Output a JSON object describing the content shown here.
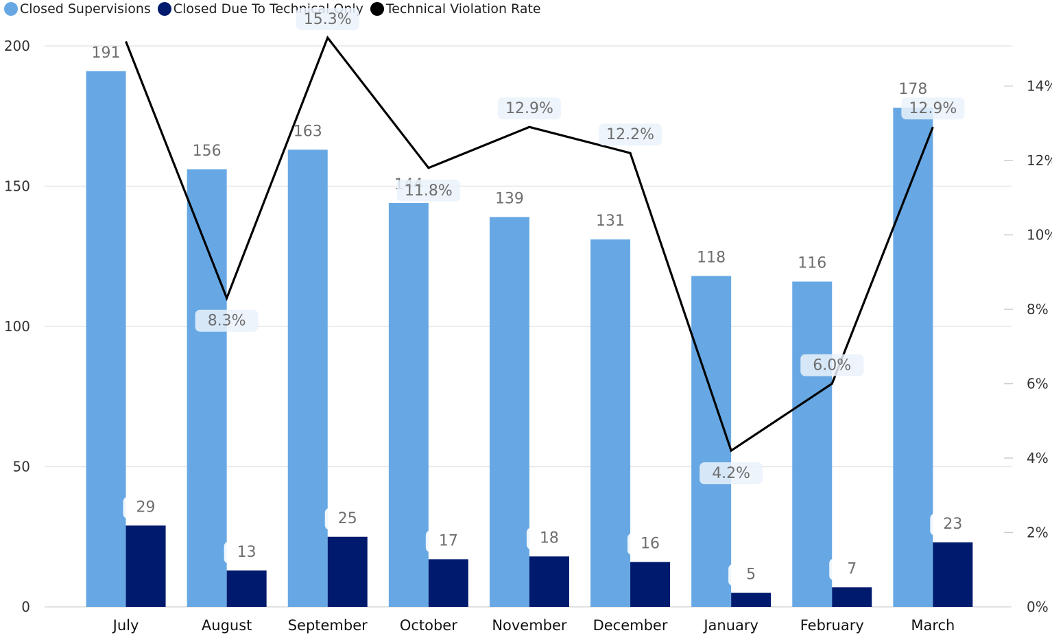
{
  "colors": {
    "closed_supervisions": "#67A8E4",
    "closed_technical": "#001A6E",
    "violation_rate": "#000000",
    "label_text": "#6E6E6E"
  },
  "legend": [
    {
      "label": "Closed Supervisions",
      "color": "#67A8E4"
    },
    {
      "label": "Closed Due To Technical Only",
      "color": "#001A6E"
    },
    {
      "label": "Technical Violation Rate",
      "color": "#000000"
    }
  ],
  "chart_data": {
    "type": "bar",
    "categories": [
      "July",
      "August",
      "September",
      "October",
      "November",
      "December",
      "January",
      "February",
      "March"
    ],
    "series": [
      {
        "name": "Closed Supervisions",
        "kind": "bar",
        "axis": "left",
        "values": [
          191,
          156,
          163,
          144,
          139,
          131,
          118,
          116,
          178
        ]
      },
      {
        "name": "Closed Due To Technical Only",
        "kind": "bar",
        "axis": "left",
        "values": [
          29,
          13,
          25,
          17,
          18,
          16,
          5,
          7,
          23
        ]
      },
      {
        "name": "Technical Violation Rate",
        "kind": "line",
        "axis": "right",
        "values": [
          15.2,
          8.3,
          15.3,
          11.8,
          12.9,
          12.2,
          4.2,
          6.0,
          12.9
        ],
        "labels": [
          "",
          "8.3%",
          "15.3%",
          "11.8%",
          "12.9%",
          "12.2%",
          "4.2%",
          "6.0%",
          "12.9%"
        ]
      }
    ],
    "y_left": {
      "ticks": [
        "0",
        "50",
        "100",
        "150",
        "200"
      ],
      "range": [
        0,
        200
      ]
    },
    "y_right": {
      "ticks": [
        "0%",
        "2%",
        "4%",
        "6%",
        "8%",
        "10%",
        "12%",
        "14%"
      ],
      "range": [
        0,
        14.5
      ]
    },
    "legend_position": "top-left",
    "grid": true
  }
}
